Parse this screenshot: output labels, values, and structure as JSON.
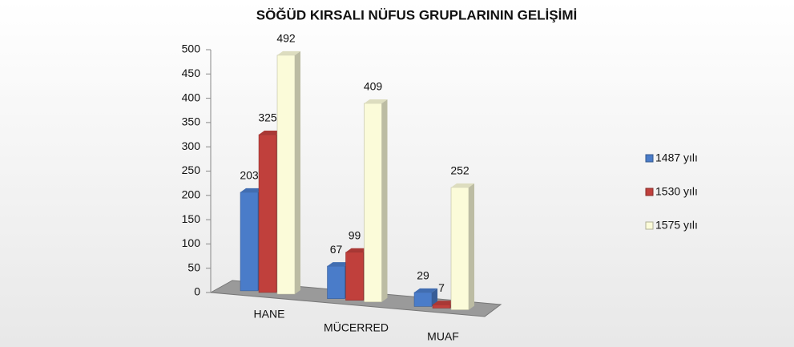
{
  "chart_data": {
    "type": "bar3d",
    "title": "SÖĞÜD KIRSALI NÜFUS GRUPLARININ GELİŞİMİ",
    "categories": [
      "HANE",
      "MÜCERRED",
      "MUAF"
    ],
    "series": [
      {
        "name": "1487 yılı",
        "color": "#4a7cc9",
        "values": [
          203,
          67,
          29
        ]
      },
      {
        "name": "1530 yılı",
        "color": "#c0403c",
        "values": [
          325,
          99,
          7
        ]
      },
      {
        "name": "1575 yılı",
        "color": "#fbfbd9",
        "values": [
          492,
          409,
          252
        ]
      }
    ],
    "ylim": [
      0,
      500
    ],
    "yticks": [
      0,
      50,
      100,
      150,
      200,
      250,
      300,
      350,
      400,
      450,
      500
    ],
    "legend": "right"
  }
}
